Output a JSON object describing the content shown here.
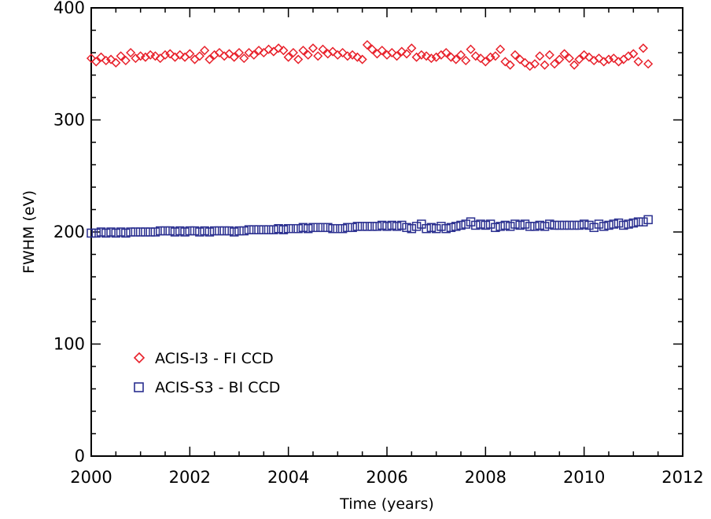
{
  "chart_data": {
    "type": "scatter",
    "xlabel": "Time (years)",
    "ylabel": "FWHM (eV)",
    "xlim": [
      2000,
      2012
    ],
    "ylim": [
      0,
      400
    ],
    "xticks": [
      2000,
      2002,
      2004,
      2006,
      2008,
      2010,
      2012
    ],
    "yticks": [
      0,
      100,
      200,
      300,
      400
    ],
    "grid": false,
    "legend_position": "lower-left",
    "series": [
      {
        "name": "ACIS-I3 - FI CCD",
        "marker": "diamond",
        "color": "#e8202a",
        "x": [
          2000.0,
          2000.1,
          2000.2,
          2000.3,
          2000.4,
          2000.5,
          2000.6,
          2000.7,
          2000.8,
          2000.9,
          2001.0,
          2001.1,
          2001.2,
          2001.3,
          2001.4,
          2001.5,
          2001.6,
          2001.7,
          2001.8,
          2001.9,
          2002.0,
          2002.1,
          2002.2,
          2002.3,
          2002.4,
          2002.5,
          2002.6,
          2002.7,
          2002.8,
          2002.9,
          2003.0,
          2003.1,
          2003.2,
          2003.3,
          2003.4,
          2003.5,
          2003.6,
          2003.7,
          2003.8,
          2003.9,
          2004.0,
          2004.1,
          2004.2,
          2004.3,
          2004.4,
          2004.5,
          2004.6,
          2004.7,
          2004.8,
          2004.9,
          2005.0,
          2005.1,
          2005.2,
          2005.3,
          2005.4,
          2005.5,
          2005.6,
          2005.7,
          2005.8,
          2005.9,
          2006.0,
          2006.1,
          2006.2,
          2006.3,
          2006.4,
          2006.5,
          2006.6,
          2006.7,
          2006.8,
          2006.9,
          2007.0,
          2007.1,
          2007.2,
          2007.3,
          2007.4,
          2007.5,
          2007.6,
          2007.7,
          2007.8,
          2007.9,
          2008.0,
          2008.1,
          2008.2,
          2008.3,
          2008.4,
          2008.5,
          2008.6,
          2008.7,
          2008.8,
          2008.9,
          2009.0,
          2009.1,
          2009.2,
          2009.3,
          2009.4,
          2009.5,
          2009.6,
          2009.7,
          2009.8,
          2009.9,
          2010.0,
          2010.1,
          2010.2,
          2010.3,
          2010.4,
          2010.5,
          2010.6,
          2010.7,
          2010.8,
          2010.9,
          2011.0,
          2011.1,
          2011.2,
          2011.3
        ],
        "y": [
          355,
          352,
          356,
          353,
          354,
          351,
          357,
          353,
          360,
          355,
          357,
          356,
          358,
          357,
          355,
          358,
          359,
          356,
          358,
          356,
          359,
          354,
          357,
          362,
          354,
          358,
          360,
          357,
          359,
          356,
          360,
          355,
          360,
          358,
          362,
          360,
          363,
          361,
          364,
          362,
          356,
          360,
          354,
          362,
          358,
          364,
          357,
          363,
          359,
          361,
          358,
          360,
          357,
          358,
          356,
          354,
          367,
          363,
          359,
          362,
          358,
          360,
          357,
          361,
          359,
          364,
          356,
          358,
          357,
          355,
          356,
          358,
          360,
          356,
          354,
          358,
          353,
          363,
          357,
          355,
          352,
          356,
          357,
          363,
          352,
          349,
          358,
          354,
          351,
          348,
          350,
          357,
          349,
          358,
          350,
          354,
          359,
          355,
          349,
          354,
          358,
          356,
          353,
          355,
          352,
          354,
          355,
          352,
          354,
          357,
          359,
          352,
          364,
          350
        ]
      },
      {
        "name": "ACIS-S3 - BI CCD",
        "marker": "square",
        "color": "#2a2f8f",
        "x": [
          2000.0,
          2000.1,
          2000.2,
          2000.3,
          2000.4,
          2000.5,
          2000.6,
          2000.7,
          2000.8,
          2000.9,
          2001.0,
          2001.1,
          2001.2,
          2001.3,
          2001.4,
          2001.5,
          2001.6,
          2001.7,
          2001.8,
          2001.9,
          2002.0,
          2002.1,
          2002.2,
          2002.3,
          2002.4,
          2002.5,
          2002.6,
          2002.7,
          2002.8,
          2002.9,
          2003.0,
          2003.1,
          2003.2,
          2003.3,
          2003.4,
          2003.5,
          2003.6,
          2003.7,
          2003.8,
          2003.9,
          2004.0,
          2004.1,
          2004.2,
          2004.3,
          2004.4,
          2004.5,
          2004.6,
          2004.7,
          2004.8,
          2004.9,
          2005.0,
          2005.1,
          2005.2,
          2005.3,
          2005.4,
          2005.5,
          2005.6,
          2005.7,
          2005.8,
          2005.9,
          2006.0,
          2006.1,
          2006.2,
          2006.3,
          2006.4,
          2006.5,
          2006.6,
          2006.7,
          2006.8,
          2006.9,
          2007.0,
          2007.1,
          2007.2,
          2007.3,
          2007.4,
          2007.5,
          2007.6,
          2007.7,
          2007.8,
          2007.9,
          2008.0,
          2008.1,
          2008.2,
          2008.3,
          2008.4,
          2008.5,
          2008.6,
          2008.7,
          2008.8,
          2008.9,
          2009.0,
          2009.1,
          2009.2,
          2009.3,
          2009.4,
          2009.5,
          2009.6,
          2009.7,
          2009.8,
          2009.9,
          2010.0,
          2010.1,
          2010.2,
          2010.3,
          2010.4,
          2010.5,
          2010.6,
          2010.7,
          2010.8,
          2010.9,
          2011.0,
          2011.1,
          2011.2,
          2011.3
        ],
        "y": [
          199,
          199,
          200,
          199,
          200,
          199,
          200,
          199,
          200,
          200,
          200,
          200,
          200,
          200,
          201,
          201,
          201,
          200,
          201,
          200,
          201,
          201,
          200,
          201,
          200,
          201,
          201,
          201,
          201,
          200,
          201,
          201,
          202,
          202,
          202,
          202,
          202,
          202,
          203,
          202,
          203,
          203,
          203,
          204,
          203,
          204,
          204,
          204,
          204,
          203,
          203,
          203,
          204,
          204,
          205,
          205,
          205,
          205,
          205,
          206,
          205,
          206,
          205,
          206,
          204,
          203,
          205,
          207,
          203,
          204,
          203,
          205,
          203,
          204,
          205,
          206,
          207,
          209,
          206,
          207,
          206,
          207,
          204,
          205,
          206,
          205,
          207,
          206,
          207,
          205,
          205,
          206,
          205,
          207,
          206,
          206,
          206,
          206,
          206,
          206,
          207,
          206,
          204,
          207,
          205,
          206,
          207,
          208,
          206,
          207,
          208,
          209,
          209,
          211
        ]
      }
    ]
  }
}
